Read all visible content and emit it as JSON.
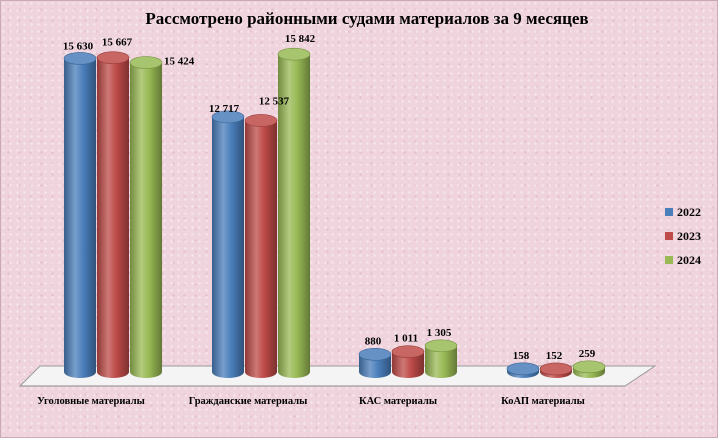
{
  "chart_data": {
    "type": "bar",
    "title": "Рассмотрено районными  судами материалов  за 9 месяцев",
    "categories": [
      "Уголовные материалы",
      "Гражданские материалы",
      "КАС материалы",
      "КоАП материалы"
    ],
    "series": [
      {
        "name": "2022",
        "values": [
          15630,
          12717,
          880,
          158
        ],
        "labels": [
          "15 630",
          "12 717",
          "880",
          "158"
        ],
        "color": "#4a7ebb"
      },
      {
        "name": "2023",
        "values": [
          15667,
          12537,
          1011,
          152
        ],
        "labels": [
          "15 667",
          "12 537",
          "1 011",
          "152"
        ],
        "color": "#be4b48"
      },
      {
        "name": "2024",
        "values": [
          15424,
          15842,
          1305,
          259
        ],
        "labels": [
          "15 424",
          "15 842",
          "1 305",
          "259"
        ],
        "color": "#98b954"
      }
    ],
    "ylim": [
      0,
      16000
    ],
    "grid": false,
    "legend_position": "right",
    "bar_shape": "cylinder-3d"
  }
}
